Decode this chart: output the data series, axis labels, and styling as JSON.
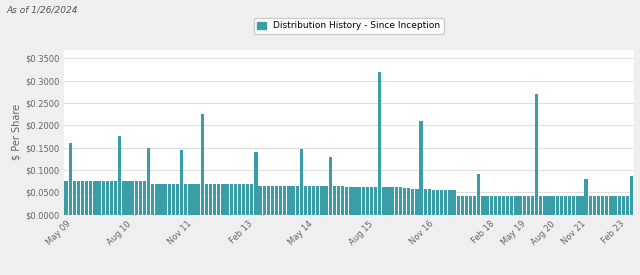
{
  "title_note": "As of 1/26/2024",
  "legend_label": "Distribution History - Since Inception",
  "ylabel": "$ Per Share",
  "bar_color": "#3a9ea9",
  "bg_color": "#efefef",
  "plot_bg_color": "#ffffff",
  "ylim": [
    0,
    0.37
  ],
  "yticks": [
    0.0,
    0.05,
    0.1,
    0.15,
    0.2,
    0.25,
    0.3,
    0.35
  ],
  "ytick_labels": [
    "$0.0000",
    "$0.0500",
    "$0.1000",
    "$0.1500",
    "$0.2000",
    "$0.2500",
    "$0.3000",
    "$0.3500"
  ],
  "xtick_labels": [
    "May 09",
    "Aug 10",
    "Nov 11",
    "Feb 13",
    "May 14",
    "Aug 15",
    "Nov 16",
    "Feb 18",
    "May 19",
    "Aug 20",
    "Nov 21",
    "Feb 23"
  ],
  "values": [
    0.075,
    0.16,
    0.075,
    0.075,
    0.075,
    0.075,
    0.075,
    0.075,
    0.075,
    0.075,
    0.075,
    0.075,
    0.075,
    0.175,
    0.075,
    0.075,
    0.075,
    0.075,
    0.075,
    0.075,
    0.15,
    0.068,
    0.068,
    0.068,
    0.068,
    0.068,
    0.068,
    0.068,
    0.145,
    0.068,
    0.068,
    0.068,
    0.068,
    0.225,
    0.068,
    0.068,
    0.068,
    0.068,
    0.068,
    0.068,
    0.068,
    0.068,
    0.068,
    0.068,
    0.068,
    0.068,
    0.14,
    0.065,
    0.065,
    0.065,
    0.065,
    0.065,
    0.065,
    0.065,
    0.065,
    0.065,
    0.065,
    0.148,
    0.065,
    0.065,
    0.065,
    0.065,
    0.065,
    0.065,
    0.128,
    0.065,
    0.065,
    0.065,
    0.062,
    0.062,
    0.062,
    0.062,
    0.062,
    0.062,
    0.062,
    0.062,
    0.32,
    0.062,
    0.062,
    0.062,
    0.062,
    0.062,
    0.06,
    0.06,
    0.058,
    0.058,
    0.21,
    0.057,
    0.057,
    0.056,
    0.056,
    0.056,
    0.056,
    0.056,
    0.056,
    0.042,
    0.042,
    0.042,
    0.042,
    0.042,
    0.09,
    0.042,
    0.042,
    0.042,
    0.042,
    0.042,
    0.042,
    0.042,
    0.042,
    0.042,
    0.042,
    0.042,
    0.042,
    0.042,
    0.27,
    0.042,
    0.042,
    0.042,
    0.042,
    0.042,
    0.042,
    0.042,
    0.042,
    0.042,
    0.042,
    0.042,
    0.08,
    0.042,
    0.042,
    0.042,
    0.042,
    0.042,
    0.042,
    0.042,
    0.042,
    0.042,
    0.042,
    0.086
  ],
  "xtick_positions_frac": [
    0.0,
    0.107,
    0.214,
    0.321,
    0.428,
    0.535,
    0.642,
    0.749,
    0.804,
    0.856,
    0.91,
    0.98
  ]
}
